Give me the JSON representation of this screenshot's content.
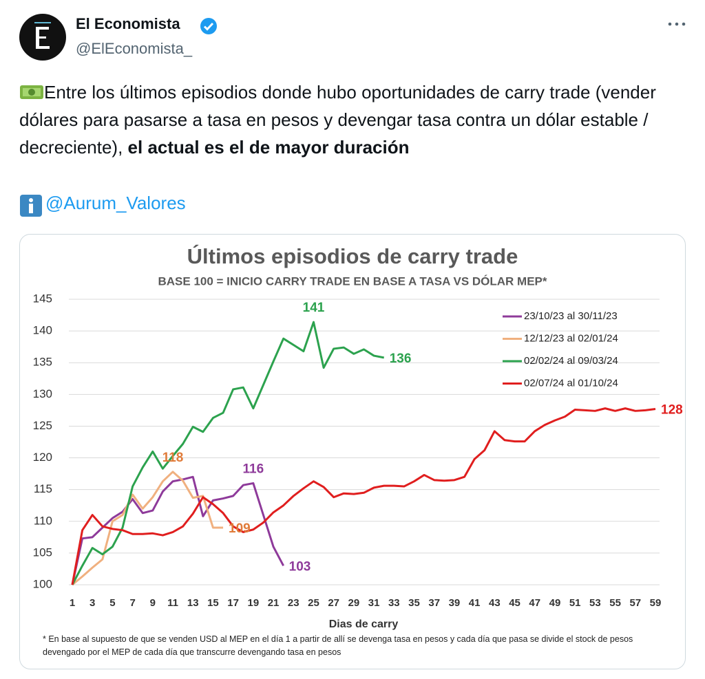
{
  "header": {
    "name": "El Economista",
    "handle": "@ElEconomista_"
  },
  "tweet": {
    "text": "Entre los últimos episodios donde hubo oportunidades de carry trade (vender dólares para pasarse a tasa en pesos y devengar tasa contra un dólar estable / decreciente), ",
    "bold_text": "el actual es el de mayor duración",
    "mention": "@Aurum_Valores"
  },
  "chart_data": {
    "type": "line",
    "title": "Últimos episodios de carry trade",
    "subtitle": "BASE 100 = INICIO CARRY TRADE EN BASE A TASA VS DÓLAR MEP*",
    "x_label": "Dias de carry",
    "footnote": "* En base al supuesto de que se venden USD al MEP en el día 1 a partir de allí se devenga tasa en pesos y cada día que pasa se divide el stock de pesos devengado por el MEP de cada día que transcurre devengando tasa en pesos",
    "x": [
      1,
      2,
      3,
      4,
      5,
      6,
      7,
      8,
      9,
      10,
      11,
      12,
      13,
      14,
      15,
      16,
      17,
      18,
      19,
      20,
      21,
      22,
      23,
      24,
      25,
      26,
      27,
      28,
      29,
      30,
      31,
      32,
      33,
      34,
      35,
      36,
      37,
      38,
      39,
      40,
      41,
      42,
      43,
      44,
      45,
      46,
      47,
      48,
      49,
      50,
      51,
      52,
      53,
      54,
      55,
      56,
      57,
      58,
      59
    ],
    "xlim": [
      1,
      59
    ],
    "xticks": [
      1,
      3,
      5,
      7,
      9,
      11,
      13,
      15,
      17,
      19,
      21,
      23,
      25,
      27,
      29,
      31,
      33,
      35,
      37,
      39,
      41,
      43,
      45,
      47,
      49,
      51,
      53,
      55,
      57,
      59
    ],
    "ylim": [
      100,
      145
    ],
    "yticks": [
      100,
      105,
      110,
      115,
      120,
      125,
      130,
      135,
      140,
      145
    ],
    "grid": true,
    "legend": "upper right",
    "series": [
      {
        "name": "23/10/23 al 30/11/23",
        "color": "#8e3a9a",
        "values": [
          100,
          107.3,
          107.5,
          109,
          110.5,
          111.5,
          113.5,
          111.3,
          111.7,
          114.7,
          116.3,
          116.6,
          117,
          110.8,
          113.3,
          113.6,
          114,
          115.7,
          116,
          111,
          106,
          103,
          null,
          null,
          null,
          null,
          null,
          null,
          null,
          null,
          null,
          null,
          null,
          null,
          null,
          null,
          null,
          null,
          null,
          null,
          null,
          null,
          null,
          null,
          null,
          null,
          null,
          null,
          null,
          null,
          null,
          null,
          null,
          null,
          null,
          null,
          null,
          null,
          null
        ],
        "value_labels": [
          null,
          null,
          null,
          null,
          null,
          null,
          null,
          null,
          null,
          null,
          null,
          null,
          null,
          null,
          null,
          null,
          null,
          null,
          "116",
          null,
          null,
          "103",
          null,
          null,
          null,
          null,
          null,
          null,
          null,
          null,
          null,
          null,
          null,
          null,
          null,
          null,
          null,
          null,
          null,
          null,
          null,
          null,
          null,
          null,
          null,
          null,
          null,
          null,
          null,
          null,
          null,
          null,
          null,
          null,
          null,
          null,
          null,
          null,
          null
        ]
      },
      {
        "name": "12/12/23 al 02/01/24",
        "color": "#f0b07f",
        "values": [
          100,
          101.3,
          102.7,
          104,
          110,
          111,
          114.2,
          112,
          113.8,
          116.3,
          117.8,
          116.4,
          113.7,
          114,
          109,
          109,
          null,
          null,
          null,
          null,
          null,
          null,
          null,
          null,
          null,
          null,
          null,
          null,
          null,
          null,
          null,
          null,
          null,
          null,
          null,
          null,
          null,
          null,
          null,
          null,
          null,
          null,
          null,
          null,
          null,
          null,
          null,
          null,
          null,
          null,
          null,
          null,
          null,
          null,
          null,
          null,
          null,
          null,
          null
        ],
        "value_labels": [
          null,
          null,
          null,
          null,
          null,
          null,
          null,
          null,
          null,
          null,
          "118",
          null,
          null,
          null,
          null,
          "109",
          null,
          null,
          null,
          null,
          null,
          null,
          null,
          null,
          null,
          null,
          null,
          null,
          null,
          null,
          null,
          null,
          null,
          null,
          null,
          null,
          null,
          null,
          null,
          null,
          null,
          null,
          null,
          null,
          null,
          null,
          null,
          null,
          null,
          null,
          null,
          null,
          null,
          null,
          null,
          null,
          null,
          null,
          null
        ]
      },
      {
        "name": "02/02/24 al 09/03/24",
        "color": "#2ca24e",
        "values": [
          100,
          103,
          105.8,
          104.8,
          106,
          109,
          115.5,
          118.5,
          121,
          118.3,
          120.3,
          122.2,
          124.9,
          124.1,
          126.3,
          127.1,
          130.8,
          131.1,
          127.8,
          131.5,
          135.2,
          138.8,
          137.8,
          136.8,
          141.4,
          134.2,
          137.2,
          137.4,
          136.4,
          137.1,
          136.1,
          135.8,
          null,
          null,
          null,
          null,
          null,
          null,
          null,
          null,
          null,
          null,
          null,
          null,
          null,
          null,
          null,
          null,
          null,
          null,
          null,
          null,
          null,
          null,
          null,
          null,
          null,
          null,
          null
        ],
        "value_labels": [
          null,
          null,
          null,
          null,
          null,
          null,
          null,
          null,
          null,
          null,
          null,
          null,
          null,
          null,
          null,
          null,
          null,
          null,
          null,
          null,
          null,
          null,
          null,
          null,
          "141",
          null,
          null,
          null,
          null,
          null,
          null,
          "136",
          null,
          null,
          null,
          null,
          null,
          null,
          null,
          null,
          null,
          null,
          null,
          null,
          null,
          null,
          null,
          null,
          null,
          null,
          null,
          null,
          null,
          null,
          null,
          null,
          null,
          null,
          null
        ]
      },
      {
        "name": "02/07/24 al 01/10/24",
        "color": "#e01e1e",
        "values": [
          100,
          108.6,
          111,
          109.2,
          108.8,
          108.6,
          108,
          108,
          108.1,
          107.8,
          108.3,
          109.2,
          111.2,
          113.8,
          112.7,
          111.3,
          109.2,
          108.3,
          108.7,
          109.8,
          111.4,
          112.5,
          114,
          115.2,
          116.3,
          115.4,
          113.8,
          114.4,
          114.3,
          114.5,
          115.3,
          115.6,
          115.6,
          115.5,
          116.3,
          117.3,
          116.5,
          116.4,
          116.5,
          117,
          119.8,
          121.2,
          124.2,
          122.8,
          122.6,
          122.6,
          124.2,
          125.2,
          125.9,
          126.5,
          127.6,
          127.5,
          127.4,
          127.8,
          127.4,
          127.8,
          127.4,
          127.5,
          127.7
        ],
        "value_labels": [
          null,
          null,
          null,
          null,
          null,
          null,
          null,
          null,
          null,
          null,
          null,
          null,
          null,
          null,
          null,
          null,
          null,
          null,
          null,
          null,
          null,
          null,
          null,
          null,
          null,
          null,
          null,
          null,
          null,
          null,
          null,
          null,
          null,
          null,
          null,
          null,
          null,
          null,
          null,
          null,
          null,
          null,
          null,
          null,
          null,
          null,
          null,
          null,
          null,
          null,
          null,
          null,
          null,
          null,
          null,
          null,
          null,
          null,
          "128"
        ]
      }
    ]
  }
}
